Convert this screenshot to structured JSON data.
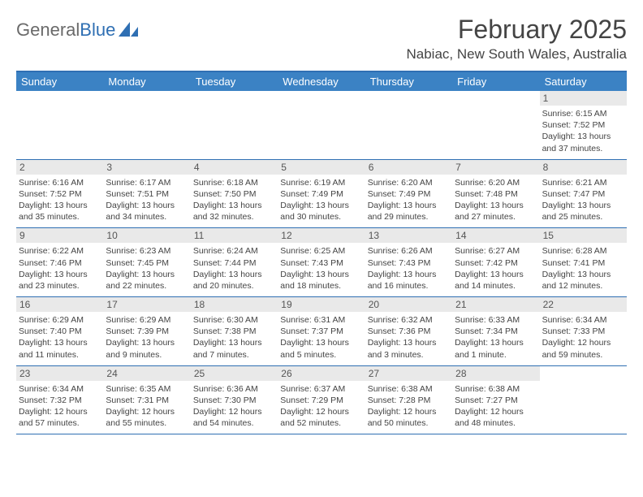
{
  "brand": {
    "name_a": "General",
    "name_b": "Blue"
  },
  "header": {
    "month_title": "February 2025",
    "location": "Nabiac, New South Wales, Australia"
  },
  "colors": {
    "header_bar": "#3b82c4",
    "rule": "#2f6fb3",
    "daynum_bg": "#e9e9e9",
    "text": "#444444",
    "logo_gray": "#6a6a6a",
    "logo_blue": "#2f6fb3"
  },
  "fonts": {
    "title_pt": 32,
    "location_pt": 17,
    "dow_pt": 13,
    "body_pt": 10.5
  },
  "days_of_week": [
    "Sunday",
    "Monday",
    "Tuesday",
    "Wednesday",
    "Thursday",
    "Friday",
    "Saturday"
  ],
  "weeks": [
    [
      {
        "n": "",
        "lines": []
      },
      {
        "n": "",
        "lines": []
      },
      {
        "n": "",
        "lines": []
      },
      {
        "n": "",
        "lines": []
      },
      {
        "n": "",
        "lines": []
      },
      {
        "n": "",
        "lines": []
      },
      {
        "n": "1",
        "lines": [
          "Sunrise: 6:15 AM",
          "Sunset: 7:52 PM",
          "Daylight: 13 hours",
          "and 37 minutes."
        ]
      }
    ],
    [
      {
        "n": "2",
        "lines": [
          "Sunrise: 6:16 AM",
          "Sunset: 7:52 PM",
          "Daylight: 13 hours",
          "and 35 minutes."
        ]
      },
      {
        "n": "3",
        "lines": [
          "Sunrise: 6:17 AM",
          "Sunset: 7:51 PM",
          "Daylight: 13 hours",
          "and 34 minutes."
        ]
      },
      {
        "n": "4",
        "lines": [
          "Sunrise: 6:18 AM",
          "Sunset: 7:50 PM",
          "Daylight: 13 hours",
          "and 32 minutes."
        ]
      },
      {
        "n": "5",
        "lines": [
          "Sunrise: 6:19 AM",
          "Sunset: 7:49 PM",
          "Daylight: 13 hours",
          "and 30 minutes."
        ]
      },
      {
        "n": "6",
        "lines": [
          "Sunrise: 6:20 AM",
          "Sunset: 7:49 PM",
          "Daylight: 13 hours",
          "and 29 minutes."
        ]
      },
      {
        "n": "7",
        "lines": [
          "Sunrise: 6:20 AM",
          "Sunset: 7:48 PM",
          "Daylight: 13 hours",
          "and 27 minutes."
        ]
      },
      {
        "n": "8",
        "lines": [
          "Sunrise: 6:21 AM",
          "Sunset: 7:47 PM",
          "Daylight: 13 hours",
          "and 25 minutes."
        ]
      }
    ],
    [
      {
        "n": "9",
        "lines": [
          "Sunrise: 6:22 AM",
          "Sunset: 7:46 PM",
          "Daylight: 13 hours",
          "and 23 minutes."
        ]
      },
      {
        "n": "10",
        "lines": [
          "Sunrise: 6:23 AM",
          "Sunset: 7:45 PM",
          "Daylight: 13 hours",
          "and 22 minutes."
        ]
      },
      {
        "n": "11",
        "lines": [
          "Sunrise: 6:24 AM",
          "Sunset: 7:44 PM",
          "Daylight: 13 hours",
          "and 20 minutes."
        ]
      },
      {
        "n": "12",
        "lines": [
          "Sunrise: 6:25 AM",
          "Sunset: 7:43 PM",
          "Daylight: 13 hours",
          "and 18 minutes."
        ]
      },
      {
        "n": "13",
        "lines": [
          "Sunrise: 6:26 AM",
          "Sunset: 7:43 PM",
          "Daylight: 13 hours",
          "and 16 minutes."
        ]
      },
      {
        "n": "14",
        "lines": [
          "Sunrise: 6:27 AM",
          "Sunset: 7:42 PM",
          "Daylight: 13 hours",
          "and 14 minutes."
        ]
      },
      {
        "n": "15",
        "lines": [
          "Sunrise: 6:28 AM",
          "Sunset: 7:41 PM",
          "Daylight: 13 hours",
          "and 12 minutes."
        ]
      }
    ],
    [
      {
        "n": "16",
        "lines": [
          "Sunrise: 6:29 AM",
          "Sunset: 7:40 PM",
          "Daylight: 13 hours",
          "and 11 minutes."
        ]
      },
      {
        "n": "17",
        "lines": [
          "Sunrise: 6:29 AM",
          "Sunset: 7:39 PM",
          "Daylight: 13 hours",
          "and 9 minutes."
        ]
      },
      {
        "n": "18",
        "lines": [
          "Sunrise: 6:30 AM",
          "Sunset: 7:38 PM",
          "Daylight: 13 hours",
          "and 7 minutes."
        ]
      },
      {
        "n": "19",
        "lines": [
          "Sunrise: 6:31 AM",
          "Sunset: 7:37 PM",
          "Daylight: 13 hours",
          "and 5 minutes."
        ]
      },
      {
        "n": "20",
        "lines": [
          "Sunrise: 6:32 AM",
          "Sunset: 7:36 PM",
          "Daylight: 13 hours",
          "and 3 minutes."
        ]
      },
      {
        "n": "21",
        "lines": [
          "Sunrise: 6:33 AM",
          "Sunset: 7:34 PM",
          "Daylight: 13 hours",
          "and 1 minute."
        ]
      },
      {
        "n": "22",
        "lines": [
          "Sunrise: 6:34 AM",
          "Sunset: 7:33 PM",
          "Daylight: 12 hours",
          "and 59 minutes."
        ]
      }
    ],
    [
      {
        "n": "23",
        "lines": [
          "Sunrise: 6:34 AM",
          "Sunset: 7:32 PM",
          "Daylight: 12 hours",
          "and 57 minutes."
        ]
      },
      {
        "n": "24",
        "lines": [
          "Sunrise: 6:35 AM",
          "Sunset: 7:31 PM",
          "Daylight: 12 hours",
          "and 55 minutes."
        ]
      },
      {
        "n": "25",
        "lines": [
          "Sunrise: 6:36 AM",
          "Sunset: 7:30 PM",
          "Daylight: 12 hours",
          "and 54 minutes."
        ]
      },
      {
        "n": "26",
        "lines": [
          "Sunrise: 6:37 AM",
          "Sunset: 7:29 PM",
          "Daylight: 12 hours",
          "and 52 minutes."
        ]
      },
      {
        "n": "27",
        "lines": [
          "Sunrise: 6:38 AM",
          "Sunset: 7:28 PM",
          "Daylight: 12 hours",
          "and 50 minutes."
        ]
      },
      {
        "n": "28",
        "lines": [
          "Sunrise: 6:38 AM",
          "Sunset: 7:27 PM",
          "Daylight: 12 hours",
          "and 48 minutes."
        ]
      },
      {
        "n": "",
        "lines": []
      }
    ]
  ]
}
